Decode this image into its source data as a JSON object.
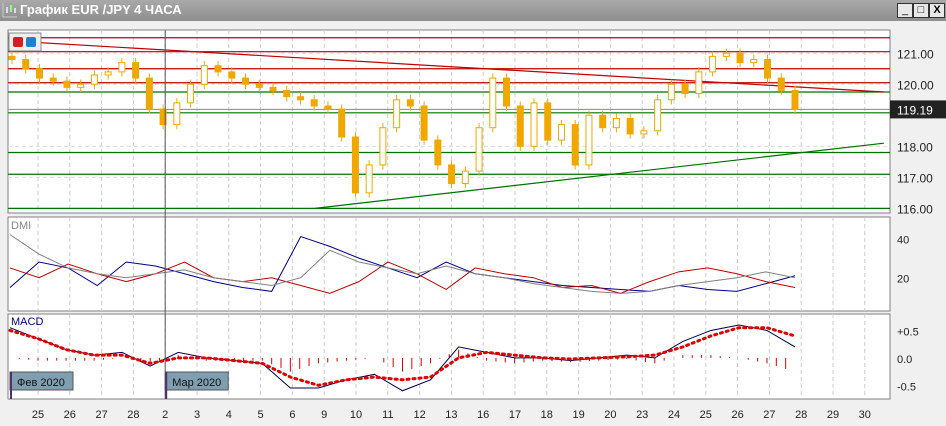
{
  "window": {
    "title": "График EUR /JPY  4 ЧАСА",
    "minimize": "_",
    "maximize": "□",
    "close": "X"
  },
  "colors": {
    "bull": "#f0a800",
    "resistance": "#c00000",
    "support": "#007000",
    "plus_di": "#00008b",
    "minus_di": "#c00000",
    "adx": "#808080",
    "macd": "#000050",
    "signal": "#e00000",
    "marker": "#7f9fb0"
  },
  "chart_data": [
    {
      "type": "candlestick",
      "symbol": "EUR/JPY",
      "timeframe": "4H",
      "current_price": "119.19",
      "y_ticks": [
        "121.00",
        "120.00",
        "118.00",
        "117.00",
        "116.00"
      ],
      "ylim": [
        115.85,
        121.75
      ],
      "closes": [
        120.8,
        120.5,
        120.2,
        120.1,
        119.9,
        120.0,
        120.3,
        120.4,
        120.7,
        120.2,
        119.2,
        118.7,
        119.4,
        120.0,
        120.6,
        120.4,
        120.2,
        120.0,
        119.9,
        119.8,
        119.6,
        119.5,
        119.3,
        119.2,
        118.3,
        116.5,
        117.4,
        118.6,
        119.5,
        119.3,
        118.2,
        117.4,
        116.8,
        117.2,
        118.6,
        120.2,
        119.3,
        118.0,
        119.4,
        118.2,
        118.7,
        117.4,
        119.0,
        118.6,
        118.9,
        118.4,
        118.5,
        119.5,
        120.0,
        119.7,
        120.4,
        120.9,
        121.0,
        120.7,
        120.8,
        120.2,
        119.8,
        119.19
      ],
      "resistance_levels": [
        121.5,
        121.05,
        120.5,
        120.05
      ],
      "support_levels": [
        119.75,
        119.08,
        117.8,
        117.1,
        116.0
      ],
      "trendlines": [
        {
          "color": "red",
          "from": [
            "Feb 24",
            121.4
          ],
          "to": [
            "Mar 30",
            119.75
          ]
        },
        {
          "color": "green",
          "from": [
            "Mar 9",
            116.0
          ],
          "to": [
            "Mar 30",
            118.1
          ]
        }
      ]
    },
    {
      "type": "line",
      "title": "DMI",
      "y_ticks": [
        "40",
        "20"
      ],
      "ylim": [
        3,
        51
      ],
      "series": [
        {
          "key": "plus_di",
          "values": [
            15,
            28,
            25,
            16,
            28,
            26,
            22,
            18,
            15,
            13,
            41,
            36,
            30,
            25,
            20,
            28,
            22,
            20,
            18,
            16,
            15,
            14,
            13,
            16,
            14,
            13,
            17,
            21
          ]
        },
        {
          "key": "minus_di",
          "values": [
            25,
            20,
            27,
            22,
            18,
            22,
            28,
            20,
            18,
            20,
            16,
            12,
            18,
            28,
            22,
            14,
            25,
            22,
            20,
            15,
            16,
            12,
            18,
            23,
            25,
            22,
            18,
            15
          ]
        },
        {
          "key": "adx",
          "values": [
            42,
            32,
            25,
            22,
            20,
            22,
            24,
            20,
            18,
            16,
            20,
            34,
            28,
            25,
            22,
            26,
            22,
            20,
            17,
            15,
            13,
            12,
            13,
            16,
            18,
            20,
            23,
            20
          ]
        }
      ]
    },
    {
      "type": "line",
      "title": "MACD",
      "y_ticks": [
        "+0.5",
        "0.0",
        "-0.5"
      ],
      "ylim": [
        -0.75,
        0.8
      ],
      "series": [
        {
          "key": "macd",
          "values": [
            0.55,
            0.35,
            0.15,
            0.05,
            0.1,
            -0.15,
            0.1,
            0.0,
            -0.05,
            -0.1,
            -0.55,
            -0.55,
            -0.4,
            -0.3,
            -0.6,
            -0.4,
            0.2,
            0.1,
            0.0,
            0.0,
            -0.05,
            0.0,
            0.05,
            0.0,
            0.3,
            0.5,
            0.6,
            0.5,
            0.2
          ]
        },
        {
          "key": "signal",
          "values": [
            0.5,
            0.35,
            0.15,
            0.05,
            0.05,
            -0.1,
            0.0,
            0.0,
            -0.05,
            -0.1,
            -0.35,
            -0.5,
            -0.4,
            -0.35,
            -0.4,
            -0.35,
            0.0,
            0.1,
            0.05,
            0.0,
            -0.02,
            0.0,
            0.02,
            0.05,
            0.2,
            0.4,
            0.55,
            0.55,
            0.4
          ]
        }
      ]
    },
    {
      "type": "axis",
      "x_ticks": [
        "25",
        "26",
        "27",
        "28",
        "2",
        "3",
        "4",
        "5",
        "6",
        "9",
        "10",
        "11",
        "12",
        "13",
        "16",
        "17",
        "18",
        "19",
        "20",
        "23",
        "24",
        "25",
        "26",
        "27",
        "28",
        "29",
        "30"
      ],
      "month_markers": [
        {
          "label": "Фев 2020",
          "tick": "25"
        },
        {
          "label": "Мар 2020",
          "tick": "2"
        }
      ]
    }
  ]
}
